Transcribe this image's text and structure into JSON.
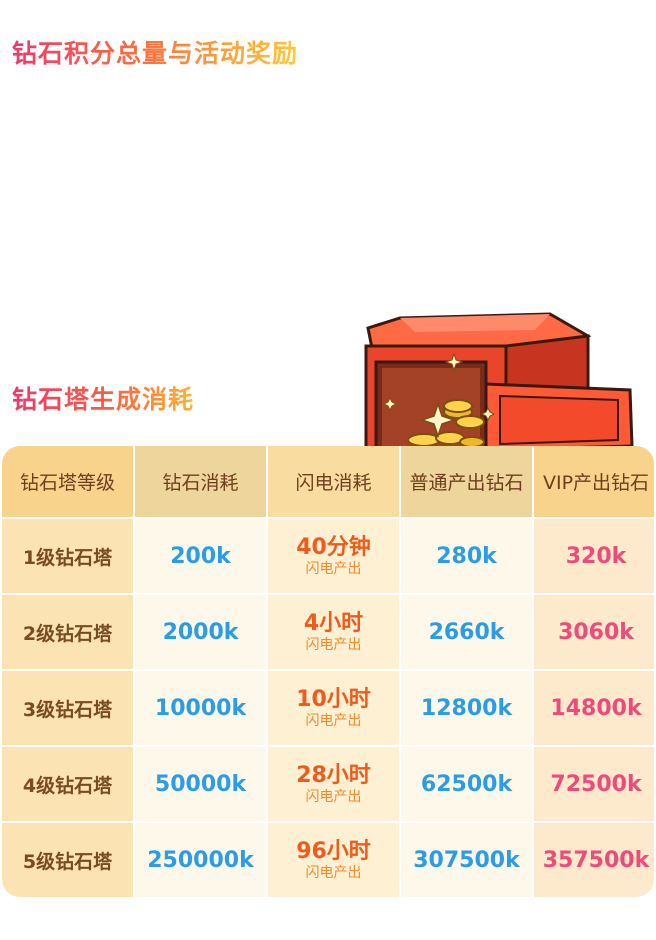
{
  "title_total": "钻石积分总量与活动奖励",
  "title_tower": "钻石塔生成消耗",
  "table": {
    "headers": [
      "钻石塔等级",
      "钻石消耗",
      "闪电消耗",
      "普通产出钻石",
      "VIP产出钻石"
    ],
    "rows": [
      {
        "level": "1级钻石塔",
        "diamond_cost": "200k",
        "lightning_cost": "40分钟",
        "lightning_note": "闪电产出",
        "normal_output": "280k",
        "vip_output": "320k"
      },
      {
        "level": "2级钻石塔",
        "diamond_cost": "2000k",
        "lightning_cost": "4小时",
        "lightning_note": "闪电产出",
        "normal_output": "2660k",
        "vip_output": "3060k"
      },
      {
        "level": "3级钻石塔",
        "diamond_cost": "10000k",
        "lightning_cost": "10小时",
        "lightning_note": "闪电产出",
        "normal_output": "12800k",
        "vip_output": "14800k"
      },
      {
        "level": "4级钻石塔",
        "diamond_cost": "50000k",
        "lightning_cost": "28小时",
        "lightning_note": "闪电产出",
        "normal_output": "62500k",
        "vip_output": "72500k"
      },
      {
        "level": "5级钻石塔",
        "diamond_cost": "250000k",
        "lightning_cost": "96小时",
        "lightning_note": "闪电产出",
        "normal_output": "307500k",
        "vip_output": "357500k"
      }
    ]
  },
  "colors": {
    "blue": "#2a9de6",
    "pink": "#ee4a7a",
    "orange": "#f05a1d",
    "header_gold": "#f8d38b"
  },
  "icons": {
    "safe": "open-treasure-safe-with-gold-coins-icon"
  }
}
